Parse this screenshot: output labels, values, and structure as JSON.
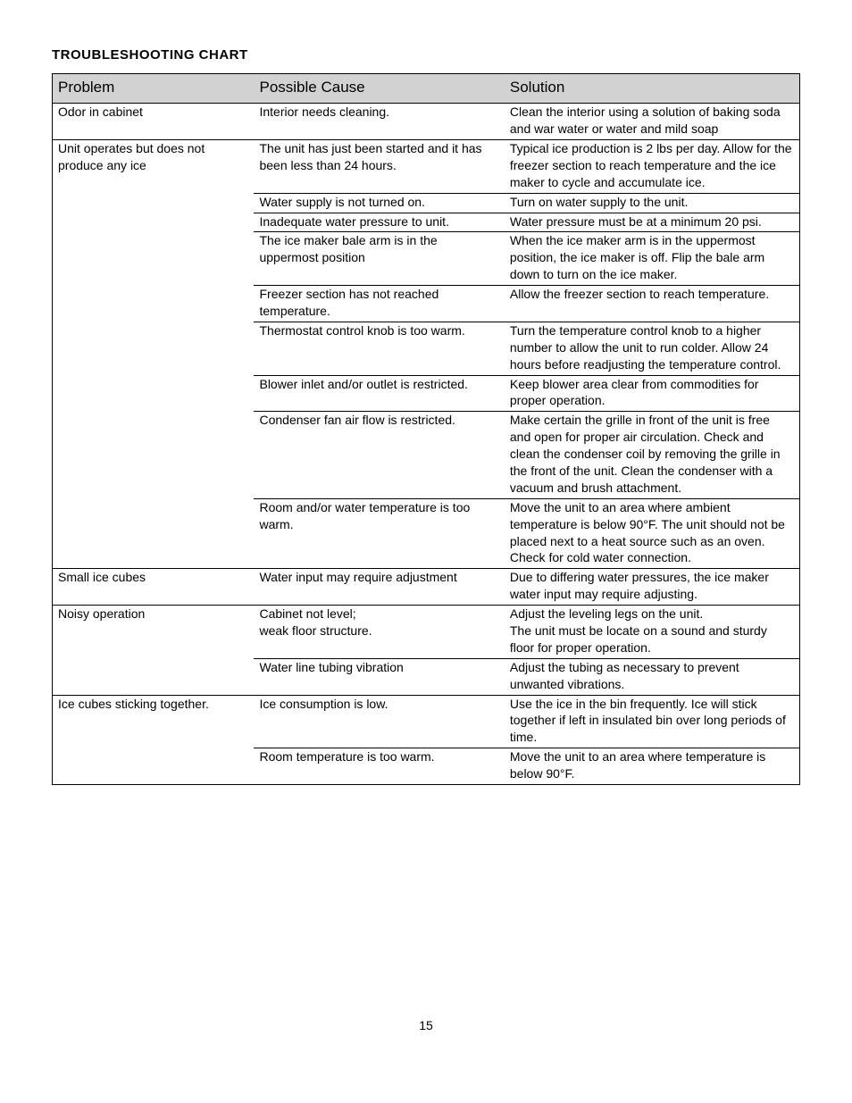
{
  "page": {
    "title": "TROUBLESHOOTING CHART",
    "pageNumber": "15"
  },
  "table": {
    "headers": {
      "problem": "Problem",
      "cause": "Possible Cause",
      "solution": "Solution"
    },
    "rows": [
      {
        "problem": "Odor in cabinet",
        "cause": "Interior needs cleaning.",
        "solution": "Clean the interior using a solution of baking soda and war water or water and mild soap"
      },
      {
        "problem": "Unit operates but does not produce any ice",
        "cause": "The unit has just been started and it has been less than 24 hours.",
        "solution": "Typical ice production is 2 lbs per day.  Allow for the freezer section to reach temperature and the ice maker to cycle and accumulate ice."
      },
      {
        "problem": "",
        "cause": "Water supply is not turned on.",
        "solution": "Turn on water supply to the unit."
      },
      {
        "problem": "",
        "cause": "Inadequate water pressure to unit.",
        "solution": "Water pressure must be at a minimum 20 psi."
      },
      {
        "problem": "",
        "cause": "The ice maker bale arm is in the uppermost position",
        "solution": "When the ice maker arm is in the uppermost position, the ice maker is off.  Flip the bale arm down to turn on the ice maker."
      },
      {
        "problem": "",
        "cause": "Freezer section has not reached temperature.",
        "solution": "Allow the freezer section to reach temperature."
      },
      {
        "problem": "",
        "cause": "Thermostat control knob is too warm.",
        "solution": "Turn the temperature control knob to a higher number to allow the unit to run colder.  Allow 24 hours before readjusting the temperature control."
      },
      {
        "problem": "",
        "cause": "Blower inlet and/or outlet is restricted.",
        "solution": "Keep blower area clear from commodities for proper operation."
      },
      {
        "problem": "",
        "cause": "Condenser fan air flow is restricted.",
        "solution": "Make certain the grille in front of the unit is free and open for proper air circulation. Check and clean the condenser coil by removing the grille in the front of the unit. Clean the condenser with a vacuum and brush attachment."
      },
      {
        "problem": "",
        "cause": "Room and/or water temperature is too warm.",
        "solution": "Move the unit to an area where ambient temperature is below 90°F.  The unit should not be placed next to a heat source such as an oven.  Check for cold water connection."
      },
      {
        "problem": "Small ice cubes",
        "cause": "Water input may require adjustment",
        "solution": "Due to differing water pressures, the ice maker water input may require adjusting."
      },
      {
        "problem": "Noisy operation",
        "cause": "Cabinet not level;\nweak floor structure.",
        "solution": "Adjust the leveling legs on the unit.\nThe unit must be locate on a sound and sturdy floor for proper operation."
      },
      {
        "problem": "",
        "cause": "Water line tubing vibration",
        "solution": "Adjust the tubing as necessary to prevent unwanted vibrations."
      },
      {
        "problem": "Ice cubes sticking together.",
        "cause": "Ice consumption is low.",
        "solution": "Use the ice in the bin frequently.  Ice will stick together if left in insulated bin over long periods of time."
      },
      {
        "problem": "",
        "cause": "Room temperature is too warm.",
        "solution": "Move the unit to an area where temperature is below 90°F."
      }
    ],
    "problemGroupEnds": [
      0,
      9,
      10,
      12,
      14
    ]
  },
  "style": {
    "header_bg": "#d2d2d2",
    "border_color": "#000000",
    "font_family": "Arial, Helvetica, sans-serif",
    "title_fontsize": 15,
    "header_fontsize": 17,
    "body_fontsize": 14
  }
}
